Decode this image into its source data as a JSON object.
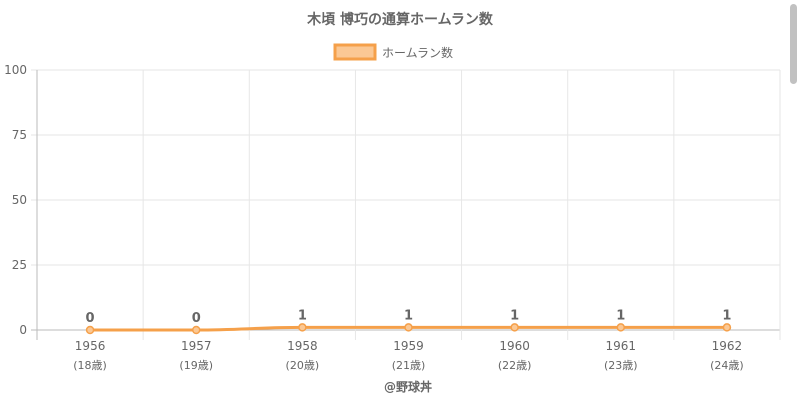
{
  "chart_data": {
    "type": "line",
    "title": "木頃 博巧の通算ホームラン数",
    "categories": [
      "1956",
      "1957",
      "1958",
      "1959",
      "1960",
      "1961",
      "1962"
    ],
    "sublabels": [
      "(18歳)",
      "(19歳)",
      "(20歳)",
      "(21歳)",
      "(22歳)",
      "(23歳)",
      "(24歳)"
    ],
    "series": [
      {
        "name": "ホームラン数",
        "values": [
          0,
          0,
          1,
          1,
          1,
          1,
          1
        ]
      }
    ],
    "ylim": [
      0,
      100
    ],
    "yticks": [
      0,
      25,
      50,
      75,
      100
    ],
    "xlabel": "@野球丼",
    "ylabel": "",
    "legend_position": "top",
    "grid": true,
    "data_labels": true,
    "colors": {
      "line": "#f5a04a",
      "fill": "#fbc894",
      "grid": "#e6e6e6",
      "axis": "#bbbbbb",
      "text": "#666666"
    }
  }
}
